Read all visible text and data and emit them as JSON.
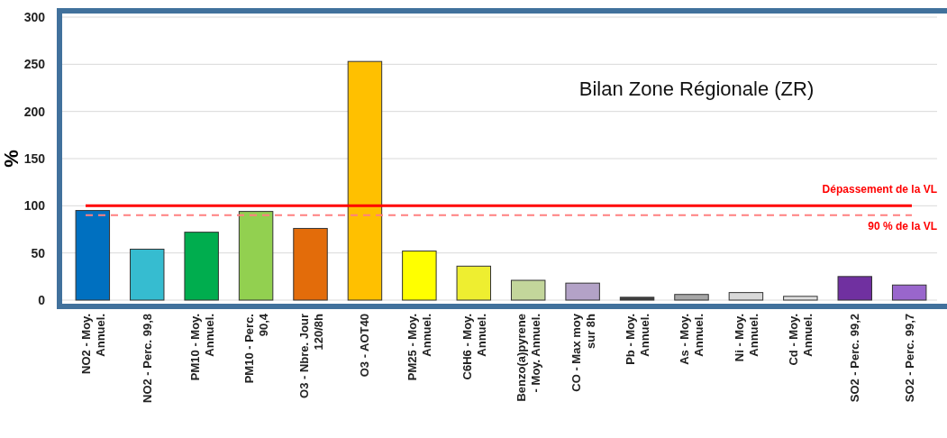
{
  "chart_data": {
    "type": "bar",
    "title": "Bilan Zone Régionale (ZR)",
    "ylabel": "%",
    "categories": [
      "NO2 - Moy.\nAnnuel.",
      "NO2 - Perc. 99,8",
      "PM10 - Moy.\nAnnuel.",
      "PM10 - Perc.\n90,4",
      "O3 - Nbre. Jour\n120/8h",
      "O3 - AOT40",
      "PM25 - Moy.\nAnnuel.",
      "C6H6 - Moy.\nAnnuel.",
      "Benzo(a)pyrene\n- Moy. Annuel.",
      "CO - Max moy\nsur 8h",
      "Pb - Moy.\nAnnuel.",
      "As - Moy.\nAnnuel.",
      "Ni - Moy.\nAnnuel.",
      "Cd - Moy.\nAnnuel.",
      "SO2 - Perc. 99,2",
      "SO2 - Perc. 99,7"
    ],
    "values": [
      95,
      54,
      72,
      94,
      76,
      253,
      52,
      36,
      21,
      18,
      3,
      6,
      8,
      4,
      25,
      16
    ],
    "colors": [
      "#0070c0",
      "#36bcd0",
      "#00ad4e",
      "#92d050",
      "#e36c0a",
      "#ffc000",
      "#ffff00",
      "#eeee30",
      "#c3d69b",
      "#b3a2c7",
      "#404040",
      "#a6a6a6",
      "#d9d9d9",
      "#e0e0e0",
      "#7030a0",
      "#9966cc"
    ],
    "ylim": [
      0,
      300
    ],
    "yticks": [
      0,
      50,
      100,
      150,
      200,
      250,
      300
    ],
    "grid": "y",
    "ref_lines": [
      {
        "axis": "y",
        "value": 100,
        "label": "Dépassement de la VL",
        "color": "#ff0000",
        "line_style": "solid"
      },
      {
        "axis": "y",
        "value": 90,
        "label": "90 % de la VL",
        "color": "#ff8080",
        "line_style": "dashed"
      }
    ]
  }
}
